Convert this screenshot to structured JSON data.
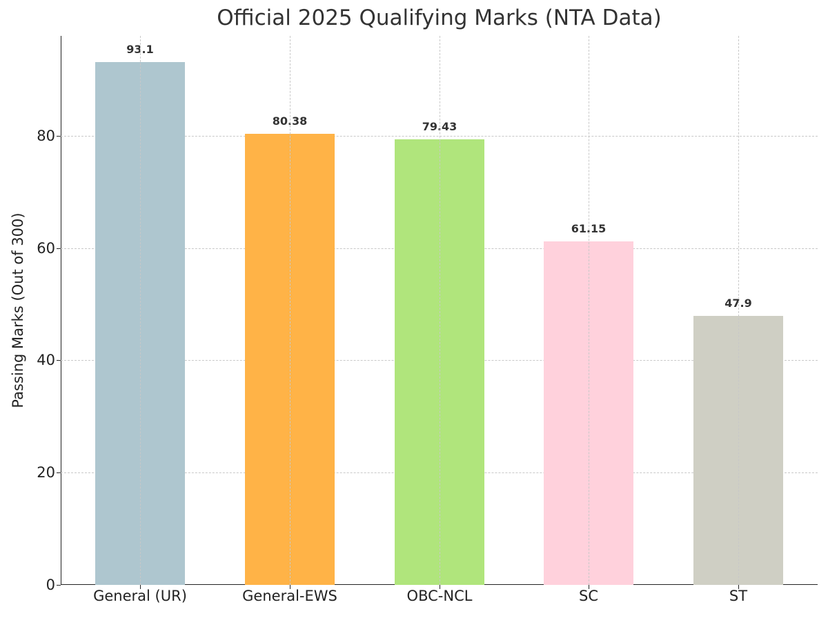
{
  "chart_data": {
    "type": "bar",
    "title": "Official 2025 Qualifying Marks (NTA Data)",
    "xlabel": "",
    "ylabel": "Passing Marks (Out of 300)",
    "categories": [
      "General (UR)",
      "General-EWS",
      "OBC-NCL",
      "SC",
      "ST"
    ],
    "values": [
      93.1,
      80.38,
      79.43,
      61.15,
      47.9
    ],
    "value_labels": [
      "93.1",
      "80.38",
      "79.43",
      "61.15",
      "47.9"
    ],
    "colors": [
      "#aec6cf",
      "#ffb347",
      "#b0e57c",
      "#ffd1dc",
      "#cfcfc4"
    ],
    "ylim": [
      0,
      97.8
    ],
    "yticks": [
      0,
      20,
      40,
      60,
      80
    ],
    "grid": true,
    "grid_style": "dashed",
    "legend": null
  }
}
